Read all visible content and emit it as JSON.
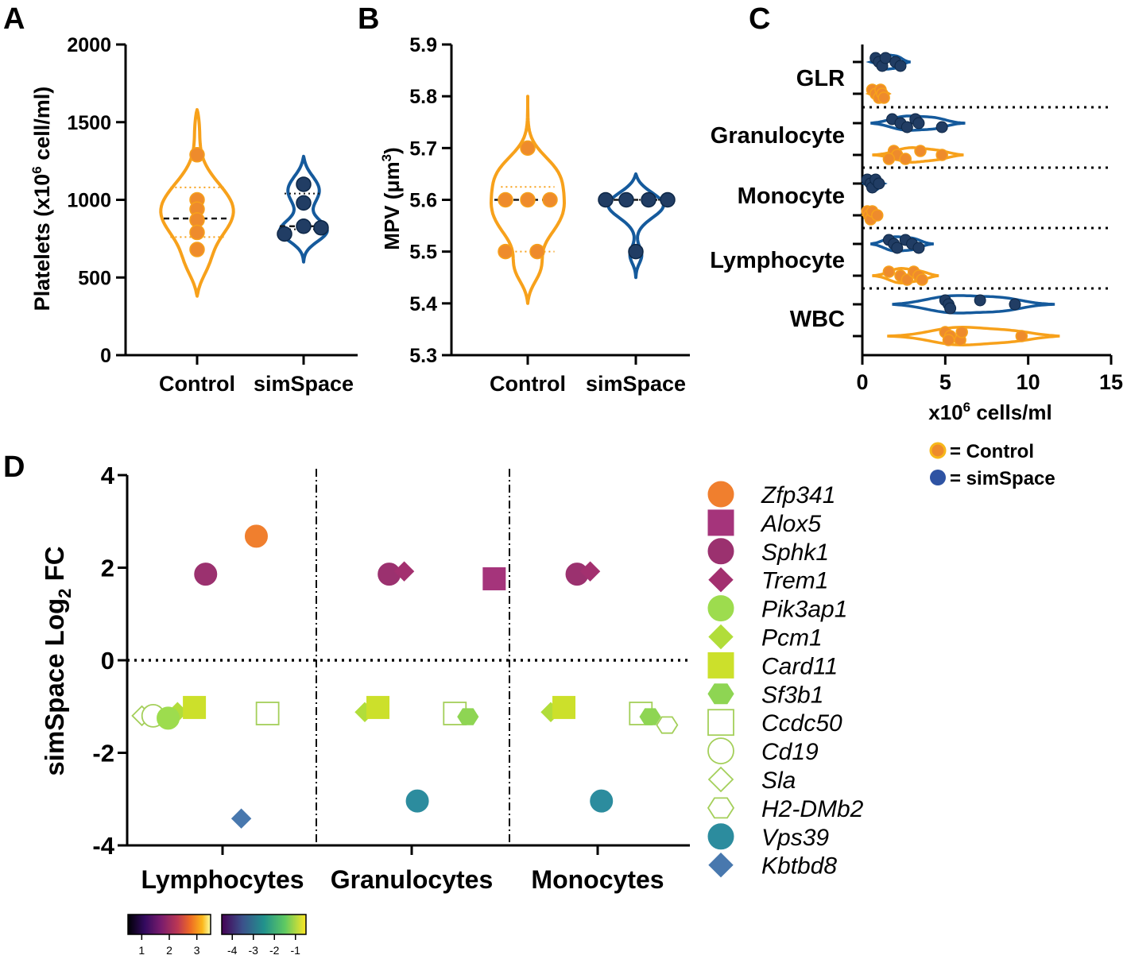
{
  "panel_letters": [
    "A",
    "B",
    "C",
    "D"
  ],
  "colors": {
    "control_fill": "#EE8B2C",
    "control_line": "#F7A11B",
    "simspace_fill": "#213D64",
    "simspace_line": "#155A9C"
  },
  "chart_data": [
    {
      "id": "A",
      "type": "scatter",
      "subtype": "violin",
      "ylabel": "Platelets (x10",
      "ylabel_sup": "6",
      "ylabel_tail": " cell/ml)",
      "ylim": [
        0,
        2000
      ],
      "yticks": [
        0,
        500,
        1000,
        1500,
        2000
      ],
      "categories": [
        "Control",
        "simSpace"
      ],
      "series": [
        {
          "name": "Control",
          "values": [
            1290,
            1000,
            940,
            870,
            790,
            680
          ],
          "median": 880,
          "q1": 760,
          "q3": 1080,
          "range": [
            380,
            1580
          ]
        },
        {
          "name": "simSpace",
          "values": [
            1100,
            980,
            830,
            820,
            780
          ],
          "median": 830,
          "q1": 810,
          "q3": 1040,
          "range": [
            600,
            1280
          ]
        }
      ]
    },
    {
      "id": "B",
      "type": "scatter",
      "subtype": "violin",
      "ylabel": "MPV (μm",
      "ylabel_sup": "3",
      "ylabel_tail": ")",
      "ylim": [
        5.3,
        5.9
      ],
      "yticks": [
        5.3,
        5.4,
        5.5,
        5.6,
        5.7,
        5.8,
        5.9
      ],
      "categories": [
        "Control",
        "simSpace"
      ],
      "series": [
        {
          "name": "Control",
          "values": [
            5.7,
            5.6,
            5.6,
            5.6,
            5.5,
            5.5
          ],
          "median": 5.6,
          "q1": 5.5,
          "q3": 5.625,
          "range": [
            5.4,
            5.8
          ]
        },
        {
          "name": "simSpace",
          "values": [
            5.6,
            5.6,
            5.6,
            5.6,
            5.5
          ],
          "median": 5.6,
          "q1": 5.6,
          "q3": 5.6,
          "range": [
            5.45,
            5.65
          ]
        }
      ]
    },
    {
      "id": "C",
      "type": "scatter",
      "subtype": "horizontal-violin",
      "xlabel": "x10",
      "xlabel_sup": "6",
      "xlabel_tail": " cells/ml",
      "xlim": [
        0,
        15
      ],
      "xticks": [
        0,
        5,
        10,
        15
      ],
      "groups": [
        {
          "label": "GLR",
          "simSpace": [
            0.8,
            1.0,
            1.2,
            1.4,
            2.0,
            2.3
          ],
          "control": [
            0.6,
            0.8,
            1.0,
            1.1,
            1.2,
            1.3
          ],
          "s_range": [
            0.5,
            2.9
          ],
          "c_range": [
            0.4,
            1.6
          ]
        },
        {
          "label": "Granulocyte",
          "simSpace": [
            1.8,
            2.3,
            2.7,
            3.2,
            3.4,
            4.8
          ],
          "control": [
            1.9,
            2.1,
            2.6,
            3.5,
            4.8,
            1.6
          ],
          "s_range": [
            0.5,
            6.2
          ],
          "c_range": [
            0.6,
            6.1
          ]
        },
        {
          "label": "Monocyte",
          "simSpace": [
            0.3,
            0.5,
            0.6,
            0.8,
            1.0
          ],
          "control": [
            0.3,
            0.4,
            0.5,
            0.6,
            0.9
          ],
          "s_range": [
            0.1,
            1.3
          ],
          "c_range": [
            0.1,
            1.1
          ]
        },
        {
          "label": "Lymphocyte",
          "simSpace": [
            1.6,
            1.9,
            2.1,
            2.6,
            3.0,
            3.4
          ],
          "control": [
            1.6,
            2.3,
            2.7,
            3.1,
            3.4,
            3.6
          ],
          "s_range": [
            0.5,
            4.3
          ],
          "c_range": [
            0.6,
            4.6
          ]
        },
        {
          "label": "WBC",
          "simSpace": [
            5.0,
            5.2,
            5.3,
            7.1,
            9.2
          ],
          "control": [
            5.0,
            5.3,
            5.9,
            6.0,
            9.6,
            5.2
          ],
          "s_range": [
            1.8,
            11.6
          ],
          "c_range": [
            1.5,
            11.9
          ]
        }
      ],
      "legend": [
        "= Control",
        "= simSpace"
      ]
    },
    {
      "id": "D",
      "type": "scatter",
      "ylabel": "simSpace Log",
      "ylabel_sub": "2",
      "ylabel_tail": " FC",
      "ylim": [
        -4,
        4
      ],
      "yticks": [
        -4,
        -2,
        0,
        2,
        4
      ],
      "categories": [
        "Lymphocytes",
        "Granulocytes",
        "Monocytes"
      ],
      "genes": [
        {
          "name": "Zfp341",
          "shape": "circle",
          "color": "#F07F2E",
          "open": false
        },
        {
          "name": "Alox5",
          "shape": "square",
          "color": "#A5347B",
          "open": false
        },
        {
          "name": "Sphk1",
          "shape": "circle",
          "color": "#9B316F",
          "open": false
        },
        {
          "name": "Trem1",
          "shape": "diamond",
          "color": "#A3306F",
          "open": false
        },
        {
          "name": "Pik3ap1",
          "shape": "circle",
          "color": "#9DDC4E",
          "open": false
        },
        {
          "name": "Pcm1",
          "shape": "diamond",
          "color": "#B1DD3A",
          "open": false
        },
        {
          "name": "Card11",
          "shape": "square",
          "color": "#CCE02B",
          "open": false
        },
        {
          "name": "Sf3b1",
          "shape": "hexagon",
          "color": "#8ED553",
          "open": false
        },
        {
          "name": "Ccdc50",
          "shape": "square",
          "color": "#A4CF5A",
          "open": true
        },
        {
          "name": "Cd19",
          "shape": "circle",
          "color": "#A4CF5A",
          "open": true
        },
        {
          "name": "Sla",
          "shape": "diamond",
          "color": "#A4CF5A",
          "open": true
        },
        {
          "name": "H2-DMb2",
          "shape": "hexagon",
          "color": "#A4CF5A",
          "open": true
        },
        {
          "name": "Vps39",
          "shape": "circle",
          "color": "#2C8C9E",
          "open": false
        },
        {
          "name": "Kbtbd8",
          "shape": "diamond",
          "color": "#4878AE",
          "open": false
        }
      ],
      "points": [
        {
          "gene": "Zfp341",
          "category": "Lymphocytes",
          "offset": 0.18,
          "y": 2.68
        },
        {
          "gene": "Sphk1",
          "category": "Lymphocytes",
          "offset": -0.09,
          "y": 1.86
        },
        {
          "gene": "Sla",
          "category": "Lymphocytes",
          "offset": -0.43,
          "y": -1.2
        },
        {
          "gene": "Cd19",
          "category": "Lymphocytes",
          "offset": -0.37,
          "y": -1.2
        },
        {
          "gene": "Pcm1",
          "category": "Lymphocytes",
          "offset": -0.24,
          "y": -1.12
        },
        {
          "gene": "Pik3ap1",
          "category": "Lymphocytes",
          "offset": -0.29,
          "y": -1.25
        },
        {
          "gene": "Card11",
          "category": "Lymphocytes",
          "offset": -0.15,
          "y": -1.02
        },
        {
          "gene": "Ccdc50",
          "category": "Lymphocytes",
          "offset": 0.24,
          "y": -1.15
        },
        {
          "gene": "Kbtbd8",
          "category": "Lymphocytes",
          "offset": 0.1,
          "y": -3.42
        },
        {
          "gene": "Sphk1",
          "category": "Granulocytes",
          "offset": -0.12,
          "y": 1.86
        },
        {
          "gene": "Trem1",
          "category": "Granulocytes",
          "offset": -0.04,
          "y": 1.92
        },
        {
          "gene": "Alox5",
          "category": "Granulocytes",
          "offset": 0.44,
          "y": 1.76
        },
        {
          "gene": "Pcm1",
          "category": "Granulocytes",
          "offset": -0.25,
          "y": -1.12
        },
        {
          "gene": "Card11",
          "category": "Granulocytes",
          "offset": -0.18,
          "y": -1.02
        },
        {
          "gene": "Ccdc50",
          "category": "Granulocytes",
          "offset": 0.23,
          "y": -1.15
        },
        {
          "gene": "Sf3b1",
          "category": "Granulocytes",
          "offset": 0.3,
          "y": -1.22
        },
        {
          "gene": "Vps39",
          "category": "Granulocytes",
          "offset": 0.03,
          "y": -3.04
        },
        {
          "gene": "Sphk1",
          "category": "Monocytes",
          "offset": -0.11,
          "y": 1.86
        },
        {
          "gene": "Trem1",
          "category": "Monocytes",
          "offset": -0.04,
          "y": 1.92
        },
        {
          "gene": "Pcm1",
          "category": "Monocytes",
          "offset": -0.25,
          "y": -1.12
        },
        {
          "gene": "Card11",
          "category": "Monocytes",
          "offset": -0.18,
          "y": -1.02
        },
        {
          "gene": "Ccdc50",
          "category": "Monocytes",
          "offset": 0.23,
          "y": -1.15
        },
        {
          "gene": "Sf3b1",
          "category": "Monocytes",
          "offset": 0.28,
          "y": -1.22
        },
        {
          "gene": "H2-DMb2",
          "category": "Monocytes",
          "offset": 0.37,
          "y": -1.4
        },
        {
          "gene": "Vps39",
          "category": "Monocytes",
          "offset": 0.02,
          "y": -3.04
        }
      ],
      "colorbars": [
        {
          "palette": "inferno",
          "ticks": [
            "1",
            "2",
            "3"
          ],
          "range": [
            0.5,
            3.5
          ]
        },
        {
          "palette": "viridis",
          "ticks": [
            "-4",
            "-3",
            "-2",
            "-1"
          ],
          "range": [
            -4.5,
            -0.5
          ]
        }
      ]
    }
  ]
}
